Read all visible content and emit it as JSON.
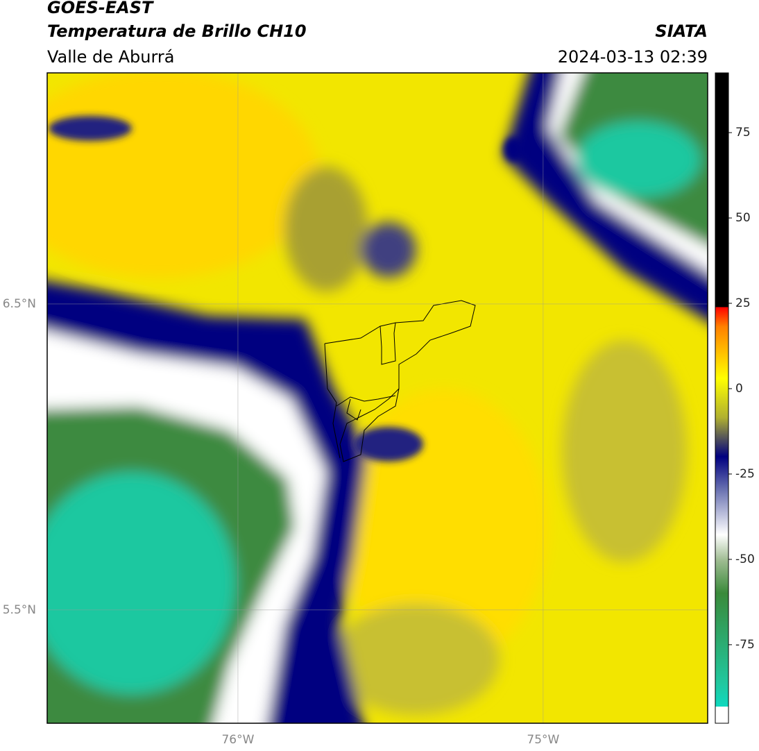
{
  "header": {
    "title": "GOES-EAST",
    "subtitle": "Temperatura de Brillo CH10",
    "region": "Valle de Aburrá",
    "source": "SIATA",
    "datetime": "2024-03-13 02:39"
  },
  "map": {
    "xlim": [
      -76.625,
      -74.461
    ],
    "ylim": [
      5.13,
      7.255
    ],
    "xticks": [
      {
        "value": -76,
        "label": "76°W"
      },
      {
        "value": -75,
        "label": "75°W"
      }
    ],
    "yticks": [
      {
        "value": 6.5,
        "label": "6.5°N"
      },
      {
        "value": 5.5,
        "label": "5.5°N"
      }
    ],
    "grid": true
  },
  "colorbar": {
    "lim": [
      -98,
      92.5
    ],
    "ticks": [
      75,
      50,
      25,
      0,
      -25,
      -50,
      -75
    ]
  }
}
